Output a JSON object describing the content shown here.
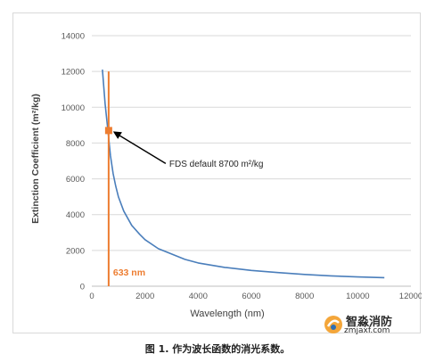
{
  "chart_data": {
    "type": "line",
    "xlabel": "Wavelength (nm)",
    "ylabel": "Extinction Coefficient (m²/kg)",
    "xlim": [
      0,
      12000
    ],
    "ylim": [
      0,
      14000
    ],
    "x_ticks": [
      "0",
      "2000",
      "4000",
      "6000",
      "8000",
      "10000",
      "12000"
    ],
    "y_ticks": [
      "0",
      "2000",
      "4000",
      "6000",
      "8000",
      "10000",
      "12000",
      "14000"
    ],
    "grid": "horizontal",
    "series": [
      {
        "color": "#4a7ebb",
        "x": [
          400,
          500,
          633,
          700,
          800,
          900,
          1000,
          1200,
          1500,
          1800,
          2000,
          2500,
          3000,
          3500,
          4000,
          5000,
          6000,
          7000,
          8000,
          9000,
          10000,
          11000
        ],
        "y": [
          12100,
          10200,
          8300,
          7300,
          6300,
          5600,
          5000,
          4200,
          3400,
          2900,
          2600,
          2100,
          1800,
          1500,
          1300,
          1050,
          880,
          760,
          660,
          580,
          520,
          480
        ]
      }
    ],
    "vertical_line": {
      "x": 633,
      "color": "#ed7d31",
      "label": "633 nm"
    },
    "marker": {
      "x": 633,
      "y": 8700,
      "color": "#ed7d31"
    },
    "annotation": {
      "text": "FDS default 8700 m²/kg"
    }
  },
  "caption": "图 1. 作为波长函数的消光系数。",
  "watermark": {
    "name": "智淼消防",
    "url": "zmjaxf.com"
  }
}
